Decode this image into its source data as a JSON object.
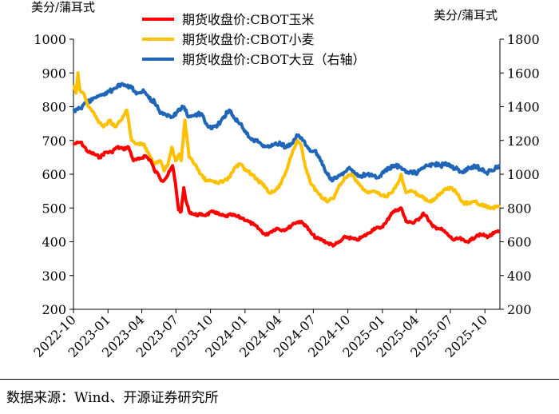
{
  "chart_data": {
    "type": "line",
    "left_unit": "美分/蒲耳式",
    "right_unit": "美分/蒲耳式",
    "y_left": {
      "min": 200,
      "max": 1000,
      "ticks": [
        200,
        300,
        400,
        500,
        600,
        700,
        800,
        900,
        1000
      ]
    },
    "y_right": {
      "min": 200,
      "max": 1800,
      "ticks": [
        200,
        400,
        600,
        800,
        1000,
        1200,
        1400,
        1600,
        1800
      ]
    },
    "x_ticks": [
      "2022-10",
      "2023-01",
      "2023-04",
      "2023-07",
      "2023-10",
      "2024-01",
      "2024-04",
      "2024-07",
      "2024-10",
      "2025-01",
      "2025-04",
      "2025-07",
      "2025-10"
    ],
    "x_start": "2022-10-01",
    "x_end": "2025-11-10",
    "legend_position": "top-center",
    "grid": false,
    "series": [
      {
        "name": "期货收盘价:CBOT玉米",
        "color": "#ff0000",
        "axis": "left",
        "points": [
          [
            "2022-10-03",
            690
          ],
          [
            "2022-10-20",
            695
          ],
          [
            "2022-11-10",
            665
          ],
          [
            "2022-11-25",
            660
          ],
          [
            "2022-12-10",
            650
          ],
          [
            "2022-12-25",
            665
          ],
          [
            "2023-01-10",
            665
          ],
          [
            "2023-01-25",
            680
          ],
          [
            "2023-02-10",
            675
          ],
          [
            "2023-02-25",
            680
          ],
          [
            "2023-03-10",
            640
          ],
          [
            "2023-03-25",
            645
          ],
          [
            "2023-04-10",
            655
          ],
          [
            "2023-04-25",
            640
          ],
          [
            "2023-05-05",
            610
          ],
          [
            "2023-05-15",
            600
          ],
          [
            "2023-05-25",
            580
          ],
          [
            "2023-06-05",
            590
          ],
          [
            "2023-06-15",
            610
          ],
          [
            "2023-06-22",
            625
          ],
          [
            "2023-06-30",
            570
          ],
          [
            "2023-07-08",
            495
          ],
          [
            "2023-07-15",
            490
          ],
          [
            "2023-07-22",
            560
          ],
          [
            "2023-07-28",
            520
          ],
          [
            "2023-08-05",
            490
          ],
          [
            "2023-08-20",
            480
          ],
          [
            "2023-09-05",
            480
          ],
          [
            "2023-09-20",
            480
          ],
          [
            "2023-10-10",
            490
          ],
          [
            "2023-10-25",
            480
          ],
          [
            "2023-11-10",
            475
          ],
          [
            "2023-11-25",
            480
          ],
          [
            "2023-12-10",
            475
          ],
          [
            "2023-12-25",
            470
          ],
          [
            "2024-01-10",
            460
          ],
          [
            "2024-01-25",
            450
          ],
          [
            "2024-02-10",
            435
          ],
          [
            "2024-02-25",
            420
          ],
          [
            "2024-03-10",
            430
          ],
          [
            "2024-03-25",
            440
          ],
          [
            "2024-04-10",
            435
          ],
          [
            "2024-04-25",
            440
          ],
          [
            "2024-05-10",
            455
          ],
          [
            "2024-05-25",
            460
          ],
          [
            "2024-06-10",
            450
          ],
          [
            "2024-06-25",
            425
          ],
          [
            "2024-07-10",
            410
          ],
          [
            "2024-07-25",
            405
          ],
          [
            "2024-08-10",
            395
          ],
          [
            "2024-08-25",
            390
          ],
          [
            "2024-09-10",
            400
          ],
          [
            "2024-09-25",
            415
          ],
          [
            "2024-10-10",
            410
          ],
          [
            "2024-10-25",
            405
          ],
          [
            "2024-11-10",
            415
          ],
          [
            "2024-11-25",
            425
          ],
          [
            "2024-12-10",
            440
          ],
          [
            "2024-12-25",
            440
          ],
          [
            "2025-01-10",
            455
          ],
          [
            "2025-01-25",
            485
          ],
          [
            "2025-02-10",
            495
          ],
          [
            "2025-02-20",
            500
          ],
          [
            "2025-03-05",
            460
          ],
          [
            "2025-03-15",
            460
          ],
          [
            "2025-03-25",
            455
          ],
          [
            "2025-04-10",
            470
          ],
          [
            "2025-04-20",
            485
          ],
          [
            "2025-05-01",
            470
          ],
          [
            "2025-05-15",
            445
          ],
          [
            "2025-05-30",
            440
          ],
          [
            "2025-06-10",
            435
          ],
          [
            "2025-06-25",
            420
          ],
          [
            "2025-07-10",
            405
          ],
          [
            "2025-07-25",
            410
          ],
          [
            "2025-08-10",
            400
          ],
          [
            "2025-08-25",
            405
          ],
          [
            "2025-09-10",
            420
          ],
          [
            "2025-09-25",
            420
          ],
          [
            "2025-10-10",
            415
          ],
          [
            "2025-10-25",
            425
          ],
          [
            "2025-11-07",
            430
          ]
        ]
      },
      {
        "name": "期货收盘价:CBOT小麦",
        "color": "#ffc000",
        "axis": "left",
        "points": [
          [
            "2022-10-03",
            860
          ],
          [
            "2022-10-08",
            840
          ],
          [
            "2022-10-13",
            900
          ],
          [
            "2022-10-18",
            850
          ],
          [
            "2022-10-28",
            840
          ],
          [
            "2022-11-10",
            800
          ],
          [
            "2022-11-25",
            780
          ],
          [
            "2022-12-05",
            760
          ],
          [
            "2022-12-20",
            740
          ],
          [
            "2023-01-05",
            760
          ],
          [
            "2023-01-20",
            740
          ],
          [
            "2023-02-05",
            760
          ],
          [
            "2023-02-20",
            790
          ],
          [
            "2023-03-05",
            700
          ],
          [
            "2023-03-20",
            690
          ],
          [
            "2023-04-05",
            690
          ],
          [
            "2023-04-20",
            660
          ],
          [
            "2023-05-05",
            630
          ],
          [
            "2023-05-20",
            640
          ],
          [
            "2023-05-30",
            610
          ],
          [
            "2023-06-10",
            630
          ],
          [
            "2023-06-20",
            680
          ],
          [
            "2023-06-30",
            640
          ],
          [
            "2023-07-10",
            660
          ],
          [
            "2023-07-15",
            640
          ],
          [
            "2023-07-25",
            760
          ],
          [
            "2023-08-05",
            650
          ],
          [
            "2023-08-20",
            630
          ],
          [
            "2023-09-05",
            600
          ],
          [
            "2023-09-20",
            580
          ],
          [
            "2023-10-05",
            580
          ],
          [
            "2023-10-20",
            575
          ],
          [
            "2023-11-05",
            580
          ],
          [
            "2023-11-20",
            590
          ],
          [
            "2023-12-05",
            620
          ],
          [
            "2023-12-20",
            630
          ],
          [
            "2024-01-05",
            610
          ],
          [
            "2024-01-20",
            600
          ],
          [
            "2024-02-05",
            580
          ],
          [
            "2024-02-20",
            570
          ],
          [
            "2024-03-05",
            545
          ],
          [
            "2024-03-20",
            550
          ],
          [
            "2024-04-05",
            570
          ],
          [
            "2024-04-20",
            610
          ],
          [
            "2024-05-05",
            660
          ],
          [
            "2024-05-20",
            700
          ],
          [
            "2024-05-28",
            690
          ],
          [
            "2024-06-10",
            620
          ],
          [
            "2024-06-25",
            570
          ],
          [
            "2024-07-10",
            550
          ],
          [
            "2024-07-25",
            530
          ],
          [
            "2024-08-10",
            520
          ],
          [
            "2024-08-25",
            530
          ],
          [
            "2024-09-10",
            570
          ],
          [
            "2024-09-25",
            590
          ],
          [
            "2024-10-10",
            600
          ],
          [
            "2024-10-25",
            580
          ],
          [
            "2024-11-10",
            555
          ],
          [
            "2024-11-25",
            545
          ],
          [
            "2024-12-10",
            550
          ],
          [
            "2024-12-25",
            540
          ],
          [
            "2025-01-10",
            535
          ],
          [
            "2025-01-25",
            545
          ],
          [
            "2025-02-10",
            570
          ],
          [
            "2025-02-20",
            600
          ],
          [
            "2025-03-05",
            545
          ],
          [
            "2025-03-20",
            550
          ],
          [
            "2025-04-05",
            540
          ],
          [
            "2025-04-20",
            530
          ],
          [
            "2025-05-05",
            520
          ],
          [
            "2025-05-20",
            525
          ],
          [
            "2025-06-05",
            545
          ],
          [
            "2025-06-20",
            555
          ],
          [
            "2025-07-05",
            560
          ],
          [
            "2025-07-20",
            540
          ],
          [
            "2025-08-05",
            515
          ],
          [
            "2025-08-20",
            515
          ],
          [
            "2025-09-05",
            520
          ],
          [
            "2025-09-20",
            510
          ],
          [
            "2025-10-05",
            505
          ],
          [
            "2025-10-20",
            500
          ],
          [
            "2025-11-07",
            505
          ]
        ]
      },
      {
        "name": "期货收盘价:CBOT大豆（右轴）",
        "color": "#1f66b8",
        "axis": "right",
        "points": [
          [
            "2022-10-03",
            1380
          ],
          [
            "2022-10-20",
            1390
          ],
          [
            "2022-11-05",
            1430
          ],
          [
            "2022-11-20",
            1440
          ],
          [
            "2022-12-05",
            1460
          ],
          [
            "2022-12-20",
            1475
          ],
          [
            "2023-01-05",
            1490
          ],
          [
            "2023-01-20",
            1510
          ],
          [
            "2023-02-05",
            1530
          ],
          [
            "2023-02-20",
            1520
          ],
          [
            "2023-03-05",
            1510
          ],
          [
            "2023-03-20",
            1480
          ],
          [
            "2023-04-05",
            1500
          ],
          [
            "2023-04-20",
            1450
          ],
          [
            "2023-05-05",
            1430
          ],
          [
            "2023-05-20",
            1360
          ],
          [
            "2023-06-05",
            1350
          ],
          [
            "2023-06-20",
            1340
          ],
          [
            "2023-07-05",
            1370
          ],
          [
            "2023-07-20",
            1400
          ],
          [
            "2023-08-05",
            1340
          ],
          [
            "2023-08-20",
            1350
          ],
          [
            "2023-09-05",
            1360
          ],
          [
            "2023-09-20",
            1300
          ],
          [
            "2023-10-05",
            1270
          ],
          [
            "2023-10-20",
            1290
          ],
          [
            "2023-11-05",
            1340
          ],
          [
            "2023-11-20",
            1380
          ],
          [
            "2023-12-05",
            1330
          ],
          [
            "2023-12-20",
            1300
          ],
          [
            "2024-01-05",
            1240
          ],
          [
            "2024-01-20",
            1210
          ],
          [
            "2024-02-05",
            1190
          ],
          [
            "2024-02-20",
            1170
          ],
          [
            "2024-03-05",
            1160
          ],
          [
            "2024-03-20",
            1180
          ],
          [
            "2024-04-05",
            1180
          ],
          [
            "2024-04-20",
            1160
          ],
          [
            "2024-05-05",
            1180
          ],
          [
            "2024-05-20",
            1230
          ],
          [
            "2024-06-05",
            1200
          ],
          [
            "2024-06-20",
            1150
          ],
          [
            "2024-07-05",
            1140
          ],
          [
            "2024-07-20",
            1080
          ],
          [
            "2024-08-05",
            1010
          ],
          [
            "2024-08-20",
            960
          ],
          [
            "2024-09-05",
            990
          ],
          [
            "2024-09-20",
            1010
          ],
          [
            "2024-10-05",
            1040
          ],
          [
            "2024-10-20",
            1000
          ],
          [
            "2024-11-05",
            990
          ],
          [
            "2024-11-20",
            1000
          ],
          [
            "2024-12-05",
            990
          ],
          [
            "2024-12-20",
            980
          ],
          [
            "2025-01-05",
            1010
          ],
          [
            "2025-01-20",
            1040
          ],
          [
            "2025-02-05",
            1050
          ],
          [
            "2025-02-20",
            1040
          ],
          [
            "2025-03-05",
            1010
          ],
          [
            "2025-03-20",
            1010
          ],
          [
            "2025-04-05",
            1010
          ],
          [
            "2025-04-20",
            1040
          ],
          [
            "2025-05-05",
            1050
          ],
          [
            "2025-05-20",
            1060
          ],
          [
            "2025-06-05",
            1050
          ],
          [
            "2025-06-20",
            1065
          ],
          [
            "2025-07-05",
            1040
          ],
          [
            "2025-07-20",
            1030
          ],
          [
            "2025-08-05",
            1010
          ],
          [
            "2025-08-20",
            1040
          ],
          [
            "2025-09-05",
            1050
          ],
          [
            "2025-09-20",
            1030
          ],
          [
            "2025-10-05",
            1010
          ],
          [
            "2025-10-20",
            1020
          ],
          [
            "2025-11-07",
            1050
          ]
        ]
      }
    ]
  },
  "source_label": "数据来源：Wind、开源证券研究所"
}
